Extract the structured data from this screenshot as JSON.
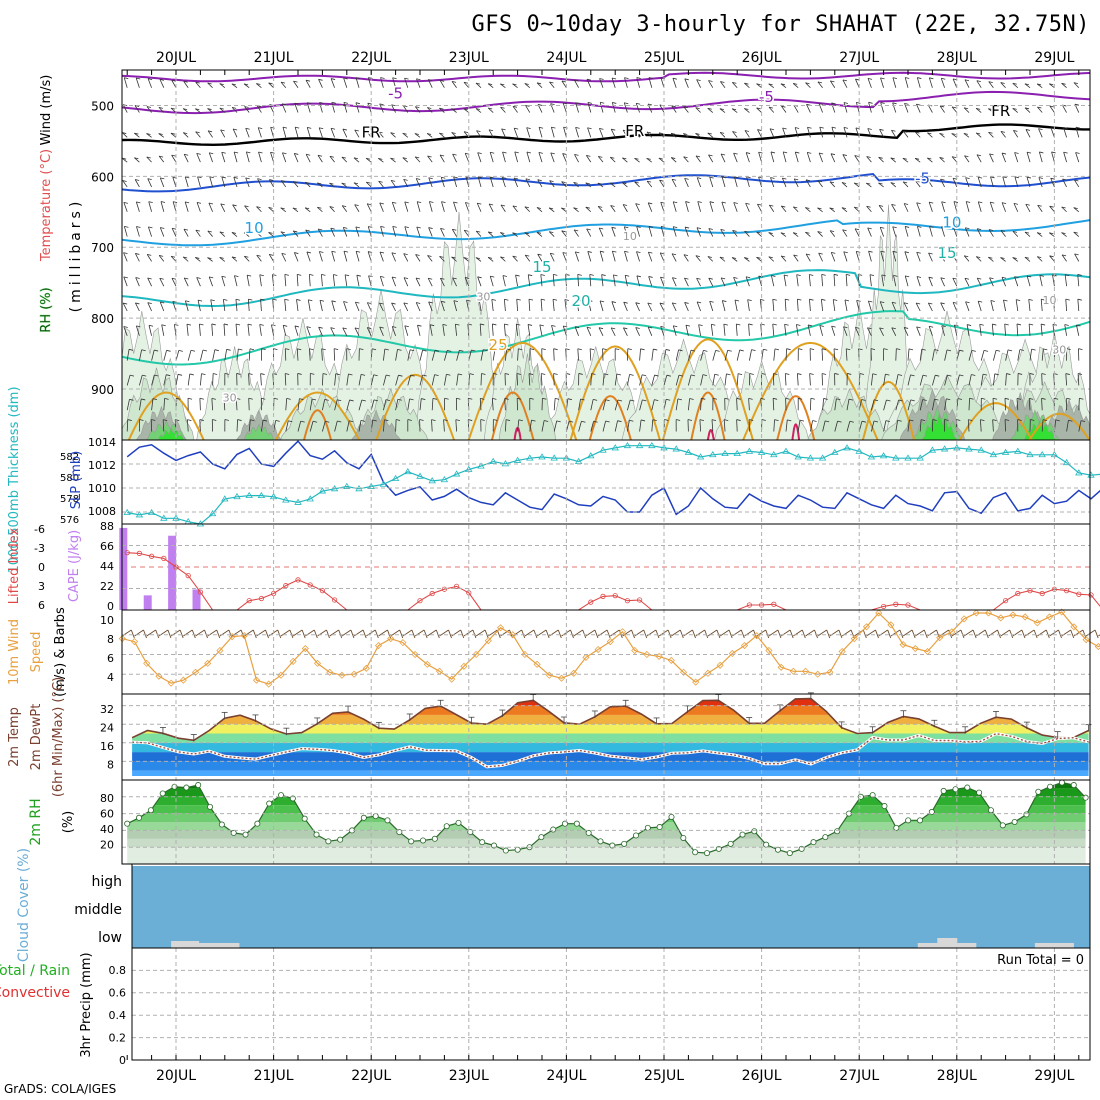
{
  "title": "GFS 0~10day 3-hourly for SHAHAT (22E, 32.75N)",
  "credit": "GrADS: COLA/IGES",
  "colors": {
    "grid": "#b0b0b0",
    "slp": "#1f3fbf",
    "thickness": "#22b8c0",
    "li": "#e04848",
    "cape": "#c080f0",
    "wind": "#e8a040",
    "barb": "#6a4a2a",
    "temp": "#7a4030",
    "dewpt": "#a05040",
    "rh": "#20b020",
    "cloud": "#6baed6",
    "purple": "#8a1fb0",
    "frz": "#000000",
    "blue5": "#2050d0",
    "cyan10": "#20a0e0",
    "teal15": "#20c0b0",
    "orange25": "#e0a020",
    "redC": "#d02060"
  },
  "chart_data": [
    {
      "type": "line",
      "panel": "vertical-cross-section",
      "title": "Temperature (°C) / Wind (m/s) / RH (%)",
      "ylabel_parts": [
        "RH (%)",
        "Temperature (°C)",
        "Wind (m/s)"
      ],
      "ylabel2": "(millibars)",
      "y_ticks": [
        500,
        600,
        700,
        800,
        900
      ],
      "ylim": [
        972,
        450
      ],
      "x_ticks_top": [
        "20JUL",
        "21JUL",
        "22JUL",
        "23JUL",
        "24JUL",
        "25JUL",
        "26JUL",
        "27JUL",
        "28JUL",
        "29JUL"
      ],
      "contour_labels": [
        {
          "text": "-5",
          "day": 2.25,
          "p": 490,
          "c": "purple"
        },
        {
          "text": "-5",
          "day": 6.05,
          "p": 495,
          "c": "purple"
        },
        {
          "text": "FR",
          "day": 2.0,
          "p": 545,
          "c": "frz"
        },
        {
          "text": "FR",
          "day": 4.7,
          "p": 543,
          "c": "frz"
        },
        {
          "text": "FR",
          "day": 8.45,
          "p": 515,
          "c": "frz"
        },
        {
          "text": "-5",
          "day": 7.65,
          "p": 610,
          "c": "blue5"
        },
        {
          "text": "10",
          "day": 0.8,
          "p": 680,
          "c": "cyan10"
        },
        {
          "text": "10",
          "day": 7.95,
          "p": 672,
          "c": "cyan10"
        },
        {
          "text": "15",
          "day": 3.75,
          "p": 735,
          "c": "teal15"
        },
        {
          "text": "15",
          "day": 7.9,
          "p": 715,
          "c": "teal15"
        },
        {
          "text": "20",
          "day": 4.15,
          "p": 783,
          "c": "teal15"
        },
        {
          "text": "25",
          "day": 3.3,
          "p": 845,
          "c": "orange25"
        },
        {
          "text": "10",
          "day": 4.65,
          "p": 690,
          "c": "grey"
        },
        {
          "text": "10",
          "day": 8.95,
          "p": 780,
          "c": "grey"
        },
        {
          "text": "30",
          "day": 3.15,
          "p": 775,
          "c": "grey"
        },
        {
          "text": "30",
          "day": 9.05,
          "p": 850,
          "c": "grey"
        },
        {
          "text": "30",
          "day": 0.55,
          "p": 918,
          "c": "grey"
        }
      ]
    },
    {
      "type": "line",
      "panel": "slp-thickness",
      "ylabel_left": "1000-500mb Thickness (dm)",
      "ylabel_right": "SLP (mb)",
      "thickness_ticks": [
        "582",
        "580",
        "578",
        "576"
      ],
      "slp_ticks": [
        "1014",
        "1012",
        "1010",
        "1008"
      ],
      "slp_range": [
        1007,
        1014
      ],
      "thickness_range": [
        575.8,
        583.2
      ],
      "series": [
        {
          "name": "SLP (mb)",
          "values": [
            1012.6,
            1013.4,
            1013.6,
            1012.9,
            1012.3,
            1012.7,
            1013.0,
            1012.0,
            1011.6,
            1012.8,
            1013.3,
            1012.0,
            1011.8,
            1012.9,
            1013.9,
            1012.7,
            1012.4,
            1013.1,
            1012.1,
            1011.6,
            1012.8,
            1010.5,
            1009.4,
            1009.8,
            1010.1,
            1009.0,
            1009.3,
            1009.9,
            1009.2,
            1008.8,
            1008.6,
            1009.6,
            1009.0,
            1008.4,
            1008.2,
            1009.5,
            1009.1,
            1008.6,
            1008.5,
            1009.3,
            1009.0,
            1008.0,
            1008.0,
            1009.4,
            1010.0,
            1007.8,
            1008.5,
            1010.0,
            1009.1,
            1008.4,
            1008.3,
            1009.5,
            1008.9,
            1008.5,
            1008.3,
            1009.4,
            1009.0,
            1008.4,
            1008.3,
            1009.6,
            1009.1,
            1008.6,
            1008.3,
            1009.4,
            1008.7,
            1008.5,
            1008.1,
            1009.6,
            1009.7,
            1008.3,
            1007.9,
            1009.2,
            1009.6,
            1008.1,
            1008.3,
            1009.4,
            1008.7,
            1008.9,
            1009.8,
            1009.1,
            1010.0
          ]
        },
        {
          "name": "Thickness (dm)",
          "values": [
            576.8,
            576.6,
            576.8,
            576.3,
            576.3,
            576.0,
            575.8,
            576.7,
            578.0,
            578.2,
            578.3,
            578.3,
            578.2,
            577.9,
            577.7,
            578.0,
            578.7,
            578.9,
            579.1,
            578.9,
            579.1,
            579.3,
            579.8,
            580.4,
            580.0,
            579.6,
            579.7,
            580.2,
            580.6,
            580.9,
            581.3,
            581.1,
            581.4,
            581.6,
            581.7,
            581.6,
            581.6,
            581.3,
            581.8,
            582.3,
            582.5,
            582.7,
            582.7,
            582.7,
            582.5,
            582.4,
            582.1,
            581.7,
            581.9,
            582.0,
            582.0,
            582.2,
            582.1,
            581.9,
            582.2,
            581.7,
            581.6,
            581.6,
            582.1,
            582.5,
            582.2,
            581.7,
            581.8,
            581.6,
            581.6,
            581.6,
            582.3,
            582.4,
            582.5,
            582.4,
            582.3,
            581.9,
            582.1,
            582.2,
            581.9,
            581.9,
            581.9,
            581.2,
            580.3,
            580.1,
            580.2
          ]
        }
      ]
    },
    {
      "type": "bar",
      "panel": "lifted-index-cape",
      "ylabel_left": "Lifted Index",
      "ylabel_right": "CAPE (J/kg)",
      "li_ticks": [
        "-6",
        "-3",
        "0",
        "3",
        "6"
      ],
      "cape_ticks": [
        "88",
        "66",
        "44",
        "22",
        "0"
      ],
      "li_range": [
        -6,
        6
      ],
      "cape_range": [
        0,
        88
      ],
      "cape_values": [
        84,
        15,
        76,
        21
      ],
      "li_values": [
        -2.0,
        -1.9,
        -1.5,
        -1.2,
        0.0,
        1.2,
        3.5,
        6,
        6,
        6,
        4.7,
        4.4,
        3.7,
        2.6,
        1.8,
        2.5,
        3.3,
        4.6,
        6,
        6,
        6,
        6,
        6,
        6,
        4.7,
        3.7,
        3.1,
        2.7,
        3.6,
        6,
        6,
        6,
        6,
        6,
        6,
        6,
        6,
        6,
        4.9,
        4.1,
        4.0,
        4.7,
        4.6,
        6,
        6,
        6,
        6,
        6,
        6,
        6,
        6,
        5.3,
        5.3,
        5.2,
        6,
        6,
        6,
        6,
        6,
        6,
        6,
        6,
        5.5,
        5.2,
        5.3,
        6,
        6,
        6,
        6,
        6,
        6,
        6,
        4.7,
        3.7,
        3.3,
        3.7,
        3.1,
        3.3,
        3.8,
        3.9,
        6,
        6,
        6,
        6,
        6,
        6,
        6,
        6,
        6,
        6,
        6,
        6,
        6,
        6,
        6,
        6,
        6,
        6,
        6,
        6,
        6,
        6,
        6,
        6,
        6,
        6,
        6,
        6,
        6,
        6,
        6,
        6,
        6,
        6,
        6,
        6,
        6,
        6,
        6,
        6
      ]
    },
    {
      "type": "line",
      "panel": "wind",
      "ylabel_parts": [
        "10m Wind",
        "Speed",
        "(m/s) & Barbs"
      ],
      "y_ticks": [
        "10",
        "8",
        "6",
        "4"
      ],
      "ylim": [
        2,
        10.5
      ],
      "series": [
        {
          "name": "10m Wind Speed (m/s)",
          "values": [
            7.6,
            7.3,
            5.1,
            3.8,
            3.1,
            3.4,
            4.2,
            5.1,
            6.4,
            7.8,
            7.9,
            3.4,
            3.0,
            3.9,
            5.3,
            6.6,
            5.1,
            4.2,
            3.9,
            4.0,
            4.6,
            6.9,
            7.6,
            7.2,
            6.0,
            5.0,
            4.3,
            3.5,
            4.8,
            6.0,
            7.4,
            8.7,
            8.0,
            6.0,
            5.0,
            3.9,
            3.6,
            4.1,
            5.7,
            6.5,
            7.3,
            8.3,
            6.4,
            6.0,
            5.8,
            5.4,
            4.2,
            3.2,
            4.1,
            4.9,
            6.1,
            6.9,
            7.9,
            6.4,
            4.7,
            4.3,
            4.3,
            4.0,
            4.2,
            6.3,
            7.6,
            8.8,
            10.2,
            9.0,
            7.0,
            6.6,
            6.3,
            7.7,
            8.3,
            9.6,
            10.2,
            10.2,
            9.7,
            10.0,
            9.8,
            9.2,
            9.8,
            10.3,
            8.8,
            7.5,
            6.8,
            7.2,
            7.1,
            6.8,
            6.9
          ]
        }
      ]
    },
    {
      "type": "area",
      "panel": "temperature",
      "ylabel_parts": [
        "2m Temp",
        "2m DewPt",
        "(6hr Min/Max) (°C)"
      ],
      "y_ticks": [
        "32",
        "24",
        "16",
        "8"
      ],
      "ylim": [
        0,
        37
      ],
      "color_bands": [
        {
          "from": 0,
          "to": 4,
          "color": "#4aa8ff"
        },
        {
          "from": 4,
          "to": 8,
          "color": "#2a88e8"
        },
        {
          "from": 8,
          "to": 12,
          "color": "#1e6fd6"
        },
        {
          "from": 12,
          "to": 16,
          "color": "#33b8e0"
        },
        {
          "from": 16,
          "to": 20,
          "color": "#7ee0a0"
        },
        {
          "from": 20,
          "to": 24,
          "color": "#f0f060"
        },
        {
          "from": 24,
          "to": 28,
          "color": "#f0b040"
        },
        {
          "from": 28,
          "to": 32,
          "color": "#ee7a20"
        },
        {
          "from": 32,
          "to": 40,
          "color": "#e03010"
        }
      ],
      "series": [
        {
          "name": "2m Temp (°C)",
          "values": [
            18.2,
            21.3,
            20.1,
            18.0,
            17.1,
            21.3,
            26.6,
            27.9,
            25.5,
            22.0,
            19.8,
            20.4,
            24.2,
            28.7,
            29.3,
            26.2,
            22.3,
            21.9,
            25.9,
            30.8,
            31.8,
            28.2,
            24.5,
            24.0,
            27.6,
            33.2,
            34.3,
            29.6,
            24.6,
            24.0,
            27.2,
            31.5,
            31.8,
            28.4,
            24.2,
            24.3,
            29.4,
            34.2,
            34.3,
            30.0,
            24.4,
            24.4,
            29.8,
            34.9,
            35.0,
            29.5,
            22.5,
            20.0,
            20.4,
            24.8,
            27.3,
            26.3,
            23.2,
            20.4,
            20.4,
            24.4,
            27.0,
            26.2,
            22.4,
            19.3,
            18.3,
            18.2,
            21.3
          ]
        },
        {
          "name": "2m DewPt (°C)",
          "values": [
            16.2,
            16.0,
            14.0,
            12.1,
            11.2,
            12.4,
            10.2,
            9.5,
            9.0,
            10.6,
            12.1,
            13.5,
            13.2,
            12.7,
            11.6,
            9.7,
            10.8,
            12.6,
            14.3,
            12.8,
            12.7,
            12.5,
            9.7,
            5.7,
            6.3,
            8.1,
            10.4,
            11.6,
            12.1,
            12.7,
            11.6,
            10.3,
            9.6,
            8.8,
            9.9,
            11.5,
            11.7,
            12.5,
            11.6,
            10.8,
            9.3,
            7.0,
            7.0,
            8.7,
            6.9,
            9.7,
            11.7,
            13.0,
            18.3,
            17.2,
            17.2,
            19.2,
            17.0,
            17.0,
            16.4,
            16.6,
            19.9,
            18.8,
            16.5,
            15.7,
            17.8,
            18.2,
            16.4
          ]
        }
      ]
    },
    {
      "type": "area",
      "panel": "relative-humidity",
      "ylabel_parts": [
        "2m RH",
        "(%)"
      ],
      "y_ticks": [
        "80",
        "60",
        "40",
        "20"
      ],
      "ylim": [
        0,
        100
      ],
      "series": [
        {
          "name": "2m RH (%)",
          "values": [
            48,
            55,
            64,
            84,
            92,
            91,
            94,
            68,
            47,
            37,
            35,
            48,
            72,
            82,
            78,
            54,
            35,
            27,
            29,
            40,
            55,
            57,
            52,
            38,
            27,
            28,
            30,
            45,
            49,
            38,
            26,
            22,
            16,
            17,
            20,
            32,
            41,
            48,
            48,
            37,
            27,
            22,
            24,
            34,
            43,
            44,
            56,
            31,
            14,
            13,
            18,
            24,
            35,
            39,
            23,
            17,
            13,
            18,
            26,
            32,
            39,
            60,
            80,
            82,
            69,
            43,
            52,
            52,
            62,
            87,
            89,
            91,
            85,
            64,
            46,
            50,
            59,
            86,
            92,
            97,
            94,
            79
          ]
        }
      ]
    },
    {
      "type": "bar",
      "panel": "cloud-cover",
      "ylabel": "Cloud Cover (%)",
      "levels": [
        "high",
        "middle",
        "low"
      ],
      "low_patches": [
        {
          "start_day": 0.15,
          "end_day": 0.65,
          "value": "3-6"
        },
        {
          "start_day": 7.6,
          "end_day": 8.2,
          "value": "5-10"
        },
        {
          "start_day": 8.8,
          "end_day": 9.2,
          "value": "5"
        }
      ]
    },
    {
      "type": "bar",
      "panel": "precipitation",
      "ylabel_parts": [
        "Total / Rain",
        "Convective",
        "3hr Precip (mm)"
      ],
      "y_ticks": [
        "0.8",
        "0.6",
        "0.4",
        "0.2",
        "0"
      ],
      "ylim": [
        0,
        1
      ],
      "run_total": "Run Total = 0",
      "values": []
    }
  ],
  "x_axis": {
    "days": [
      "20JUL",
      "21JUL",
      "22JUL",
      "23JUL",
      "24JUL",
      "25JUL",
      "26JUL",
      "27JUL",
      "28JUL",
      "29JUL"
    ]
  }
}
